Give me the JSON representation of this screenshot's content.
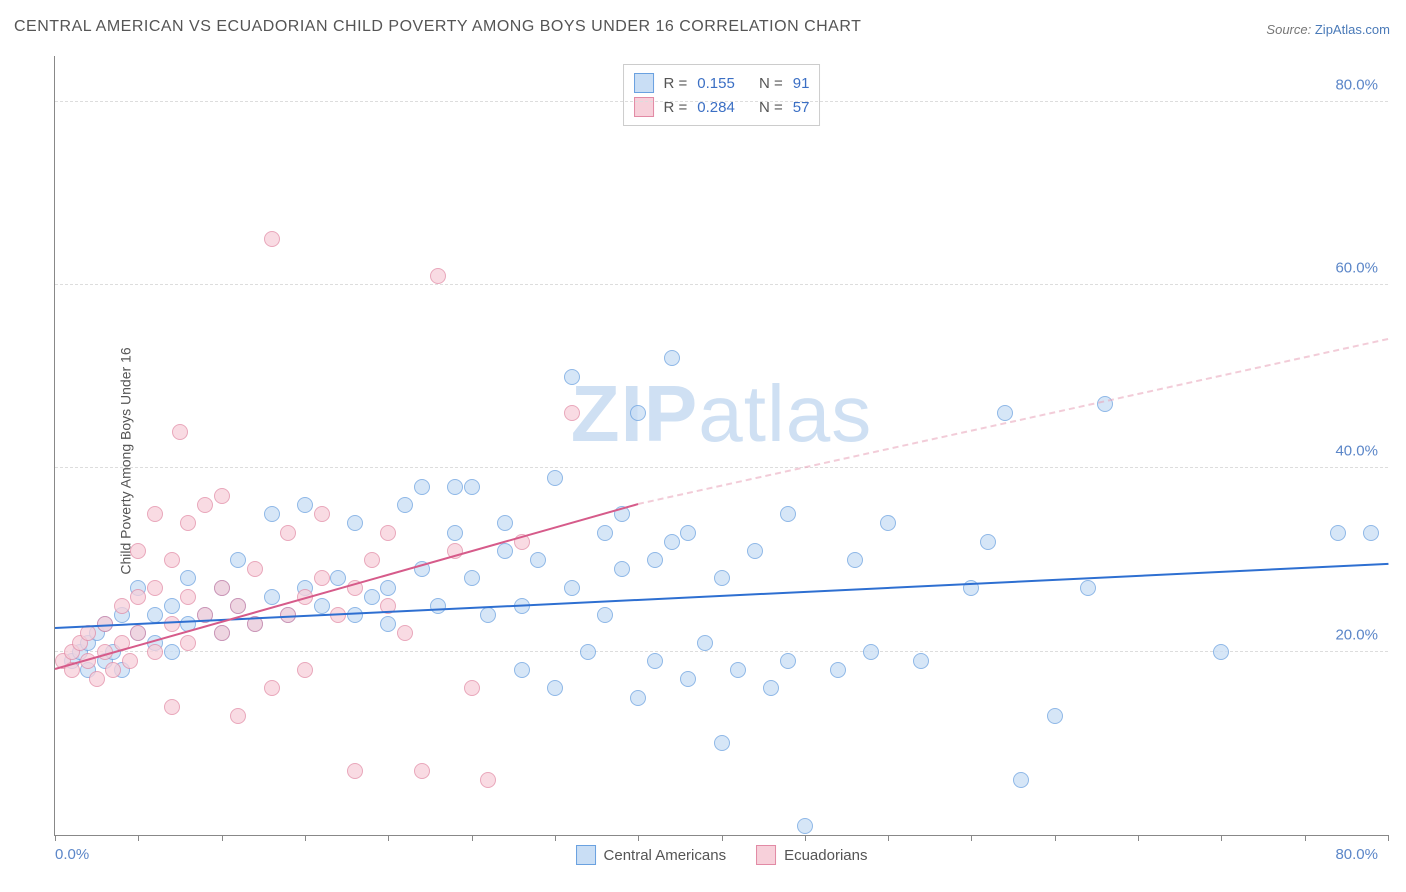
{
  "title": "CENTRAL AMERICAN VS ECUADORIAN CHILD POVERTY AMONG BOYS UNDER 16 CORRELATION CHART",
  "source": {
    "label": "Source:",
    "site": "ZipAtlas.com"
  },
  "watermark": {
    "zip": "ZIP",
    "atlas": "atlas"
  },
  "chart": {
    "type": "scatter",
    "ylabel": "Child Poverty Among Boys Under 16",
    "xlim": [
      0,
      80
    ],
    "ylim": [
      0,
      85
    ],
    "xticks": {
      "left": "0.0%",
      "right": "80.0%"
    },
    "yticks": [
      {
        "v": 20,
        "label": "20.0%"
      },
      {
        "v": 40,
        "label": "40.0%"
      },
      {
        "v": 60,
        "label": "60.0%"
      },
      {
        "v": 80,
        "label": "80.0%"
      }
    ],
    "x_tick_marks": [
      0,
      5,
      10,
      15,
      20,
      25,
      30,
      35,
      40,
      45,
      50,
      55,
      60,
      65,
      70,
      75,
      80
    ],
    "background_color": "#ffffff",
    "grid_color": "#dddddd",
    "axis_color": "#888888",
    "tick_label_color": "#5b86c8",
    "marker_radius": 8,
    "marker_border_width": 1.5,
    "series": [
      {
        "id": "central_americans",
        "label": "Central Americans",
        "fill": "#c9def5",
        "stroke": "#6aa1e0",
        "R": "0.155",
        "N": "91",
        "trend": {
          "x1": 0,
          "y1": 22.5,
          "x2": 80,
          "y2": 29.5,
          "color": "#2e6fd1",
          "style": "solid"
        },
        "points": [
          [
            1,
            19
          ],
          [
            1.5,
            20
          ],
          [
            2,
            18
          ],
          [
            2,
            21
          ],
          [
            2.5,
            22
          ],
          [
            3,
            19
          ],
          [
            3,
            23
          ],
          [
            3.5,
            20
          ],
          [
            4,
            24
          ],
          [
            4,
            18
          ],
          [
            5,
            22
          ],
          [
            5,
            27
          ],
          [
            6,
            21
          ],
          [
            6,
            24
          ],
          [
            7,
            20
          ],
          [
            7,
            25
          ],
          [
            8,
            23
          ],
          [
            8,
            28
          ],
          [
            9,
            24
          ],
          [
            10,
            22
          ],
          [
            10,
            27
          ],
          [
            11,
            25
          ],
          [
            11,
            30
          ],
          [
            12,
            23
          ],
          [
            13,
            26
          ],
          [
            13,
            35
          ],
          [
            14,
            24
          ],
          [
            15,
            27
          ],
          [
            15,
            36
          ],
          [
            16,
            25
          ],
          [
            17,
            28
          ],
          [
            18,
            24
          ],
          [
            18,
            34
          ],
          [
            19,
            26
          ],
          [
            20,
            23
          ],
          [
            20,
            27
          ],
          [
            21,
            36
          ],
          [
            22,
            29
          ],
          [
            22,
            38
          ],
          [
            23,
            25
          ],
          [
            24,
            33
          ],
          [
            25,
            28
          ],
          [
            25,
            38
          ],
          [
            26,
            24
          ],
          [
            27,
            31
          ],
          [
            27,
            34
          ],
          [
            28,
            18
          ],
          [
            28,
            25
          ],
          [
            29,
            30
          ],
          [
            30,
            39
          ],
          [
            30,
            16
          ],
          [
            31,
            27
          ],
          [
            31,
            50
          ],
          [
            32,
            20
          ],
          [
            33,
            24
          ],
          [
            33,
            33
          ],
          [
            34,
            29
          ],
          [
            34,
            35
          ],
          [
            35,
            15
          ],
          [
            36,
            19
          ],
          [
            36,
            30
          ],
          [
            37,
            32
          ],
          [
            37,
            52
          ],
          [
            38,
            17
          ],
          [
            38,
            33
          ],
          [
            39,
            21
          ],
          [
            40,
            28
          ],
          [
            40,
            10
          ],
          [
            41,
            18
          ],
          [
            42,
            31
          ],
          [
            43,
            16
          ],
          [
            44,
            19
          ],
          [
            44,
            35
          ],
          [
            45,
            1
          ],
          [
            47,
            18
          ],
          [
            48,
            30
          ],
          [
            49,
            20
          ],
          [
            50,
            34
          ],
          [
            52,
            19
          ],
          [
            55,
            27
          ],
          [
            56,
            32
          ],
          [
            57,
            46
          ],
          [
            58,
            6
          ],
          [
            60,
            13
          ],
          [
            62,
            27
          ],
          [
            63,
            47
          ],
          [
            70,
            20
          ],
          [
            77,
            33
          ],
          [
            79,
            33
          ],
          [
            35,
            46
          ],
          [
            24,
            38
          ]
        ]
      },
      {
        "id": "ecuadorians",
        "label": "Ecuadorians",
        "fill": "#f7d0da",
        "stroke": "#e28aa5",
        "R": "0.284",
        "N": "57",
        "trend_solid": {
          "x1": 0,
          "y1": 18,
          "x2": 35,
          "y2": 36,
          "color": "#d65b8a",
          "style": "solid"
        },
        "trend_dash": {
          "x1": 35,
          "y1": 36,
          "x2": 80,
          "y2": 54,
          "color": "#e9a3b9",
          "style": "dashed"
        },
        "points": [
          [
            0.5,
            19
          ],
          [
            1,
            18
          ],
          [
            1,
            20
          ],
          [
            1.5,
            21
          ],
          [
            2,
            19
          ],
          [
            2,
            22
          ],
          [
            2.5,
            17
          ],
          [
            3,
            20
          ],
          [
            3,
            23
          ],
          [
            3.5,
            18
          ],
          [
            4,
            21
          ],
          [
            4,
            25
          ],
          [
            4.5,
            19
          ],
          [
            5,
            22
          ],
          [
            5,
            26
          ],
          [
            5,
            31
          ],
          [
            6,
            20
          ],
          [
            6,
            27
          ],
          [
            6,
            35
          ],
          [
            7,
            23
          ],
          [
            7,
            30
          ],
          [
            7,
            14
          ],
          [
            7.5,
            44
          ],
          [
            8,
            21
          ],
          [
            8,
            26
          ],
          [
            8,
            34
          ],
          [
            9,
            24
          ],
          [
            9,
            36
          ],
          [
            10,
            22
          ],
          [
            10,
            27
          ],
          [
            10,
            37
          ],
          [
            11,
            25
          ],
          [
            11,
            13
          ],
          [
            12,
            23
          ],
          [
            12,
            29
          ],
          [
            13,
            65
          ],
          [
            13,
            16
          ],
          [
            14,
            24
          ],
          [
            14,
            33
          ],
          [
            15,
            26
          ],
          [
            15,
            18
          ],
          [
            16,
            28
          ],
          [
            16,
            35
          ],
          [
            17,
            24
          ],
          [
            18,
            27
          ],
          [
            18,
            7
          ],
          [
            19,
            30
          ],
          [
            20,
            25
          ],
          [
            20,
            33
          ],
          [
            21,
            22
          ],
          [
            22,
            7
          ],
          [
            23,
            61
          ],
          [
            24,
            31
          ],
          [
            25,
            16
          ],
          [
            26,
            6
          ],
          [
            28,
            32
          ],
          [
            31,
            46
          ]
        ]
      }
    ],
    "legend": [
      {
        "label": "Central Americans",
        "fill": "#c9def5",
        "stroke": "#6aa1e0"
      },
      {
        "label": "Ecuadorians",
        "fill": "#f7d0da",
        "stroke": "#e28aa5"
      }
    ],
    "stats_box": {
      "r_label": "R  =",
      "n_label": "N  ="
    },
    "title_fontsize": 16,
    "tick_fontsize": 15,
    "ylabel_fontsize": 14
  }
}
